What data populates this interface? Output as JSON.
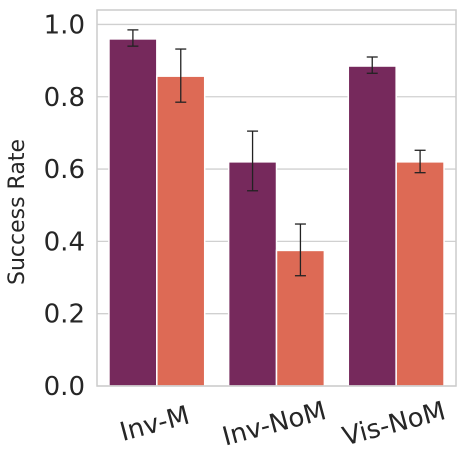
{
  "chart_data": {
    "type": "bar",
    "ylabel": "Success Rate",
    "ylim": [
      0,
      1.04
    ],
    "yticks": [
      "0.0",
      "0.2",
      "0.4",
      "0.6",
      "0.8",
      "1.0"
    ],
    "grid": true,
    "categories": [
      "Inv-M",
      "Inv-NoM",
      "Vis-NoM"
    ],
    "series": [
      {
        "color": "#76295c",
        "values": [
          0.96,
          0.62,
          0.885
        ],
        "error_low": [
          0.94,
          0.54,
          0.865
        ],
        "error_high": [
          0.985,
          0.705,
          0.91
        ]
      },
      {
        "color": "#dd6a55",
        "values": [
          0.857,
          0.375,
          0.62
        ],
        "error_low": [
          0.785,
          0.305,
          0.59
        ],
        "error_high": [
          0.932,
          0.448,
          0.652
        ]
      }
    ]
  },
  "colors": {
    "grid": "#d0d0d0",
    "frame": "#cccccc",
    "errorbar": "#222222"
  }
}
